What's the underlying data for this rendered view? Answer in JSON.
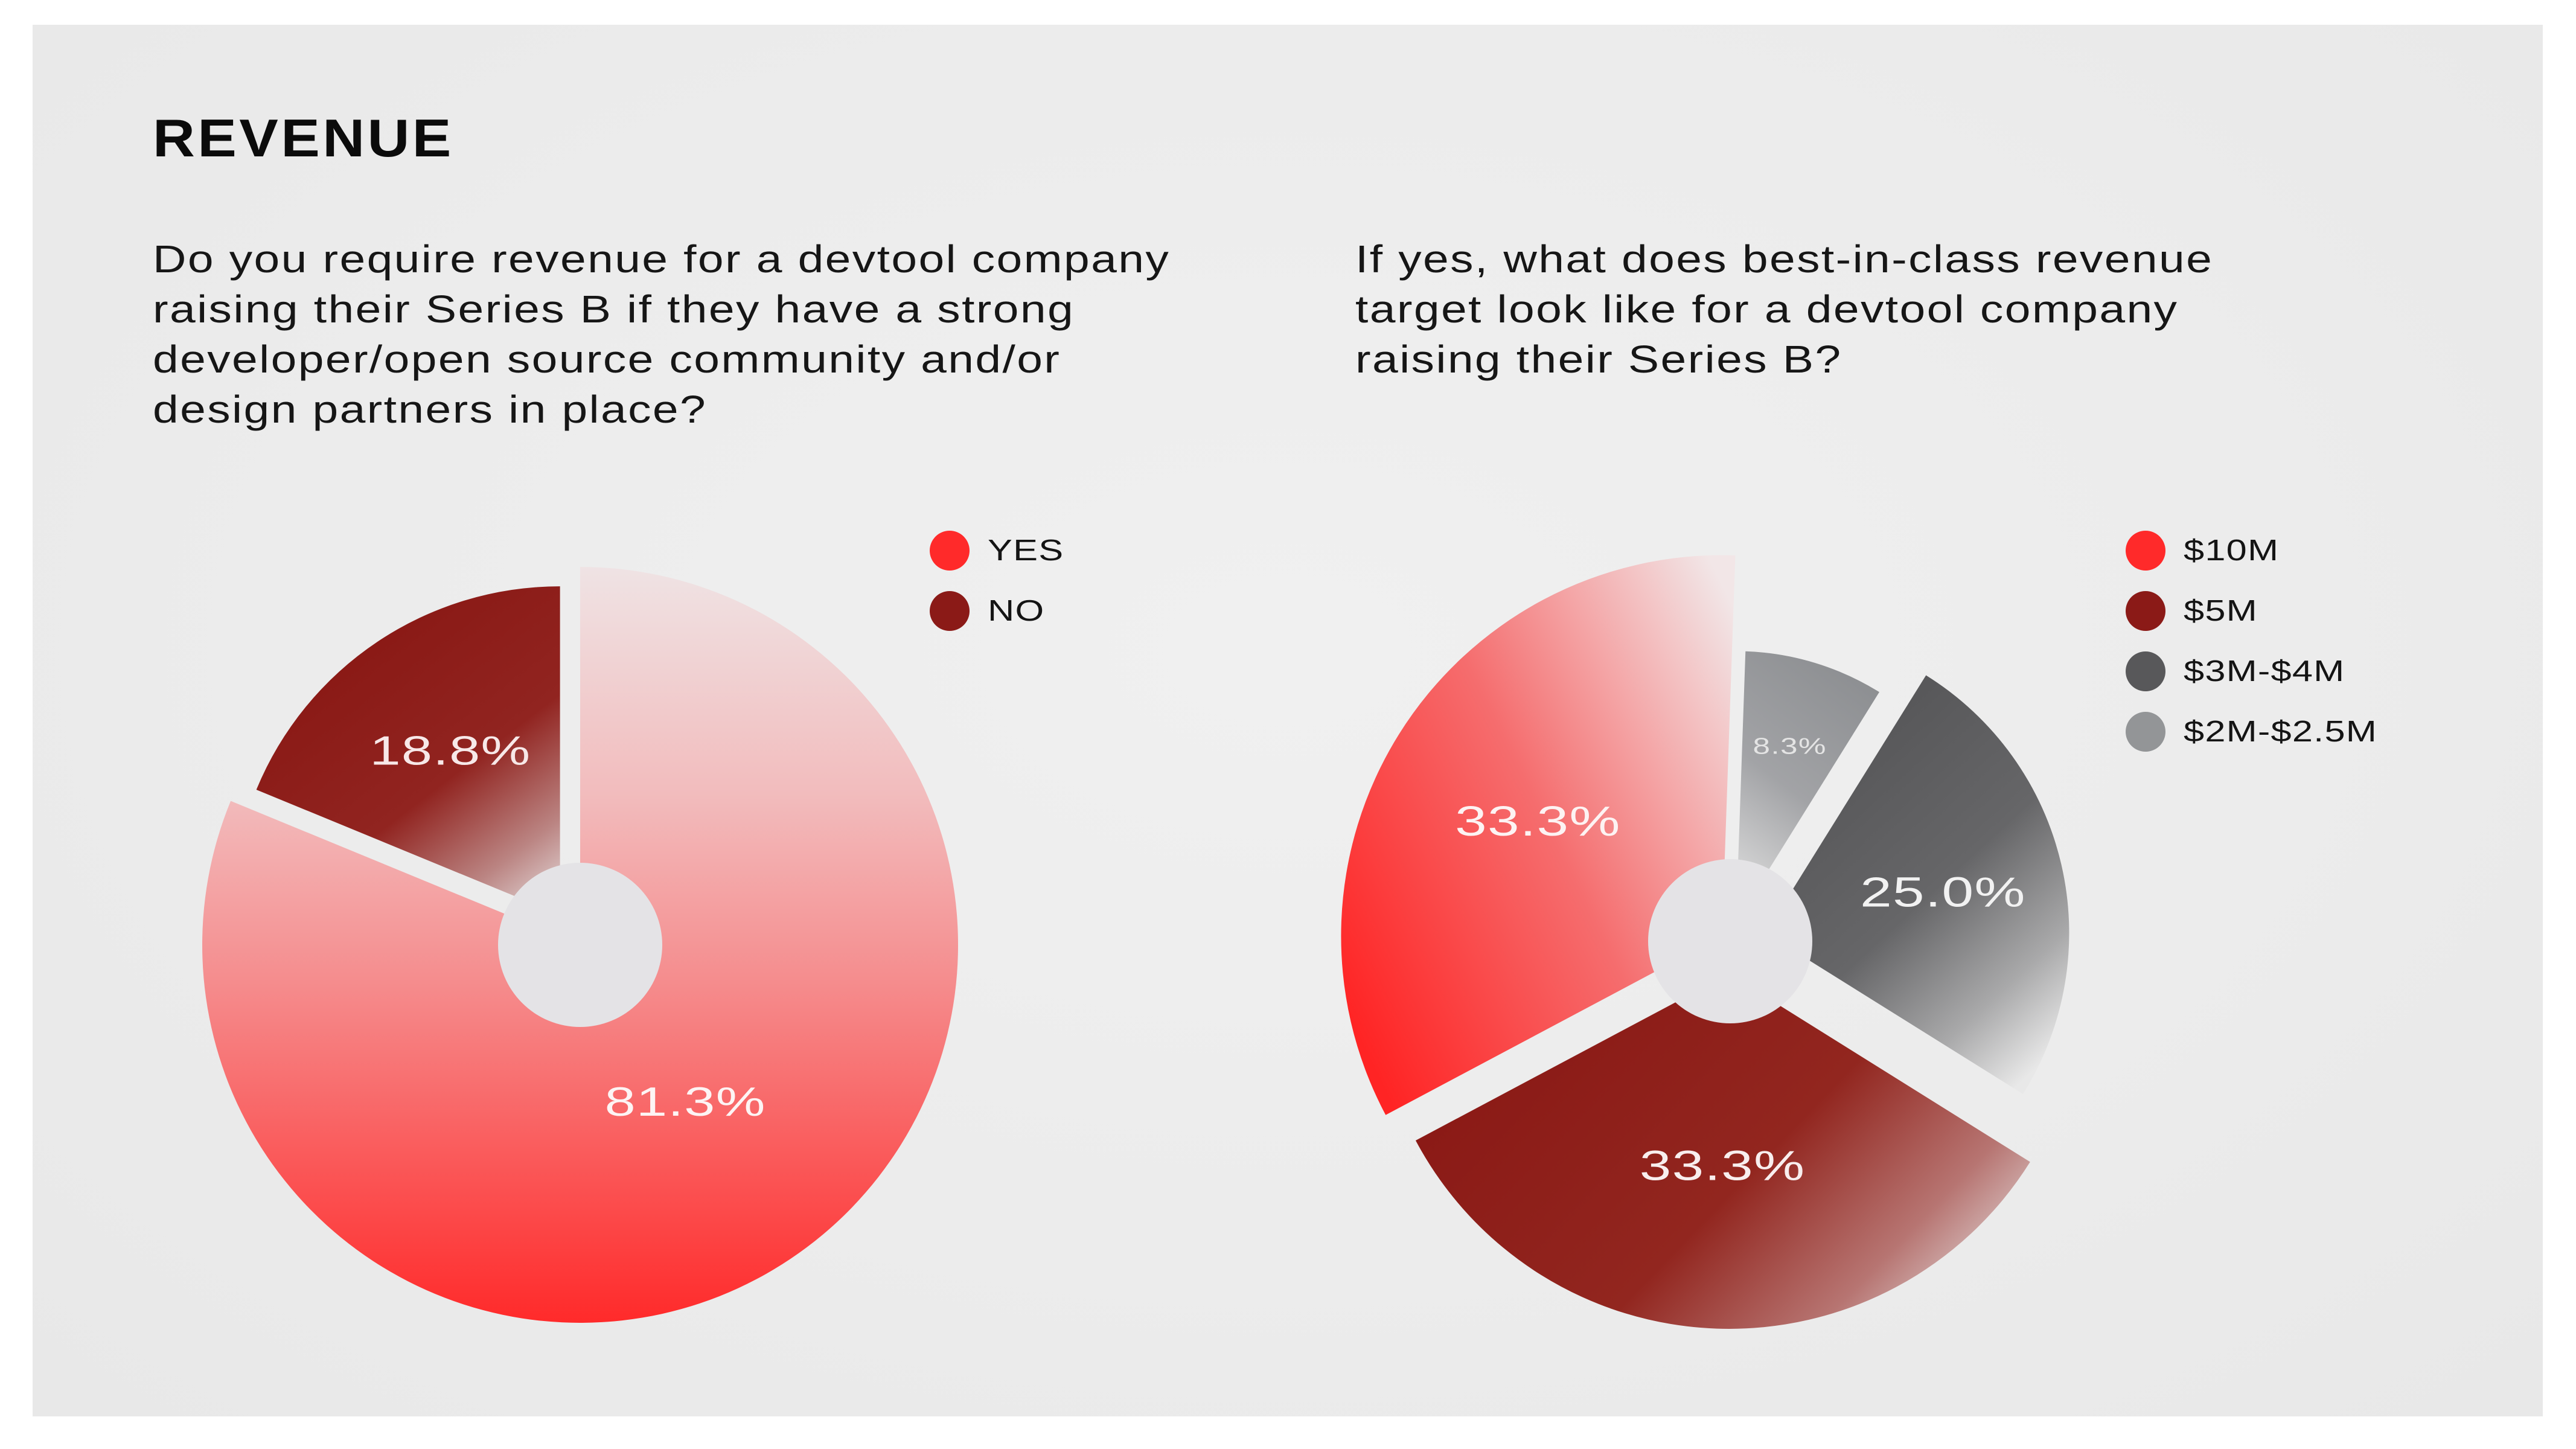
{
  "header": {
    "title": "REVENUE"
  },
  "sections": [
    {
      "question_lines": [
        "Do you require revenue for a devtool company",
        "raising their Series B if they have a strong",
        "developer/open source community and/or",
        "design partners in place?"
      ]
    },
    {
      "question_lines": [
        "If yes, what does best-in-class revenue",
        "target look like for a devtool company",
        "raising their Series B?"
      ]
    }
  ],
  "chart_data": [
    {
      "type": "pie",
      "style": "donut",
      "categories": [
        "YES",
        "NO"
      ],
      "values": [
        81.3,
        18.8
      ],
      "value_labels": [
        "81.3%",
        "18.8%"
      ],
      "colors": [
        "#ff2a2a",
        "#8b1a17"
      ],
      "legend": "top-right"
    },
    {
      "type": "pie",
      "style": "donut",
      "categories": [
        "$10M",
        "$5M",
        "$3M-$4M",
        "$2M-$2.5M"
      ],
      "values": [
        33.3,
        33.3,
        25.0,
        8.3
      ],
      "value_labels": [
        "33.3%",
        "33.3%",
        "25.0%",
        "8.3%"
      ],
      "colors": [
        "#ff2a2a",
        "#8b1a17",
        "#58585a",
        "#939597"
      ],
      "legend": "top-right"
    }
  ]
}
